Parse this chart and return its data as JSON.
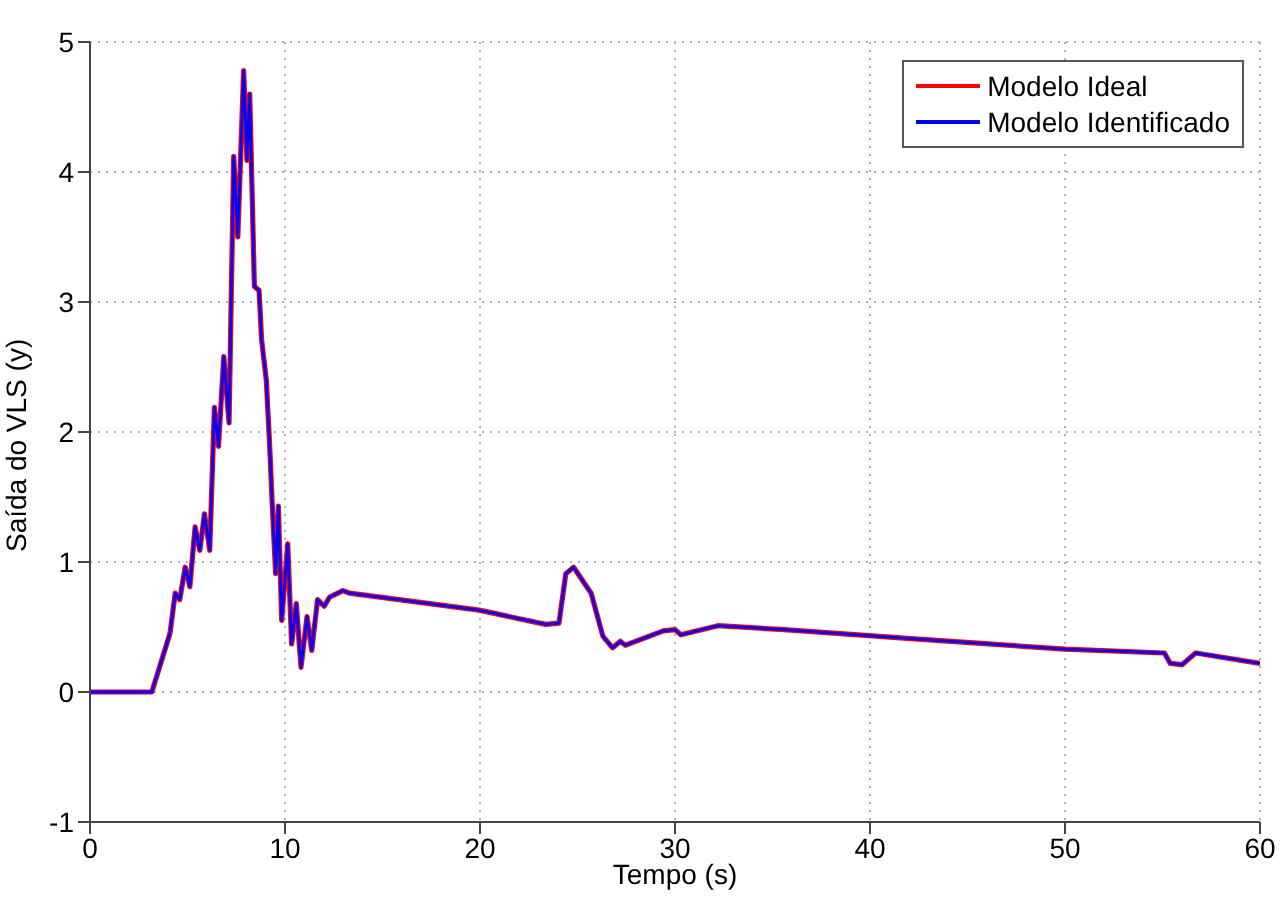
{
  "chart_data": {
    "type": "line",
    "xlabel": "Tempo (s)",
    "ylabel": "Saída do VLS (y)",
    "x": [
      0,
      3.17,
      4.1,
      4.37,
      4.6,
      4.88,
      5.12,
      5.39,
      5.63,
      5.87,
      6.14,
      6.38,
      6.59,
      6.86,
      7.13,
      7.37,
      7.58,
      7.88,
      8.05,
      8.19,
      8.43,
      8.67,
      8.8,
      9.04,
      9.2,
      9.35,
      9.52,
      9.66,
      9.83,
      10.14,
      10.34,
      10.58,
      10.82,
      11.13,
      11.37,
      11.67,
      12.01,
      12.29,
      12.97,
      13.3,
      19.96,
      23.37,
      24.05,
      24.4,
      24.8,
      25.7,
      26.3,
      26.8,
      27.2,
      27.45,
      29.4,
      30.0,
      30.3,
      32.2,
      35.6,
      42.1,
      50.0,
      55.1,
      55.4,
      56.0,
      56.7,
      60.0
    ],
    "series": [
      {
        "name": "Modelo Ideal",
        "color": "#ff0000",
        "values": [
          0,
          0,
          0.45,
          0.76,
          0.71,
          0.96,
          0.81,
          1.27,
          1.09,
          1.37,
          1.09,
          2.19,
          1.89,
          2.58,
          2.07,
          4.12,
          3.5,
          4.78,
          4.09,
          4.6,
          3.12,
          3.09,
          2.71,
          2.4,
          1.94,
          1.43,
          0.91,
          1.43,
          0.55,
          1.14,
          0.37,
          0.68,
          0.19,
          0.58,
          0.32,
          0.71,
          0.66,
          0.73,
          0.78,
          0.76,
          0.63,
          0.52,
          0.53,
          0.91,
          0.96,
          0.76,
          0.43,
          0.34,
          0.39,
          0.36,
          0.47,
          0.48,
          0.44,
          0.51,
          0.48,
          0.41,
          0.33,
          0.3,
          0.22,
          0.21,
          0.3,
          0.22
        ]
      },
      {
        "name": "Modelo Identificado",
        "color": "#0000ff",
        "values": [
          0,
          0,
          0.45,
          0.76,
          0.71,
          0.96,
          0.81,
          1.27,
          1.09,
          1.37,
          1.09,
          2.19,
          1.89,
          2.58,
          2.07,
          4.12,
          3.5,
          4.78,
          4.09,
          4.6,
          3.12,
          3.09,
          2.71,
          2.4,
          1.94,
          1.43,
          0.91,
          1.43,
          0.55,
          1.14,
          0.37,
          0.68,
          0.19,
          0.58,
          0.32,
          0.71,
          0.66,
          0.73,
          0.78,
          0.76,
          0.63,
          0.52,
          0.53,
          0.91,
          0.96,
          0.76,
          0.43,
          0.34,
          0.39,
          0.36,
          0.47,
          0.48,
          0.44,
          0.51,
          0.48,
          0.41,
          0.33,
          0.3,
          0.22,
          0.21,
          0.3,
          0.22
        ]
      }
    ],
    "xlim": [
      0,
      60
    ],
    "xticks": [
      0,
      10,
      20,
      30,
      40,
      50,
      60
    ],
    "ylim": [
      -1,
      5
    ],
    "yticks": [
      -1,
      0,
      1,
      2,
      3,
      4,
      5
    ],
    "grid": true,
    "legend": "top right",
    "line_style": "solid",
    "marker": "none"
  }
}
